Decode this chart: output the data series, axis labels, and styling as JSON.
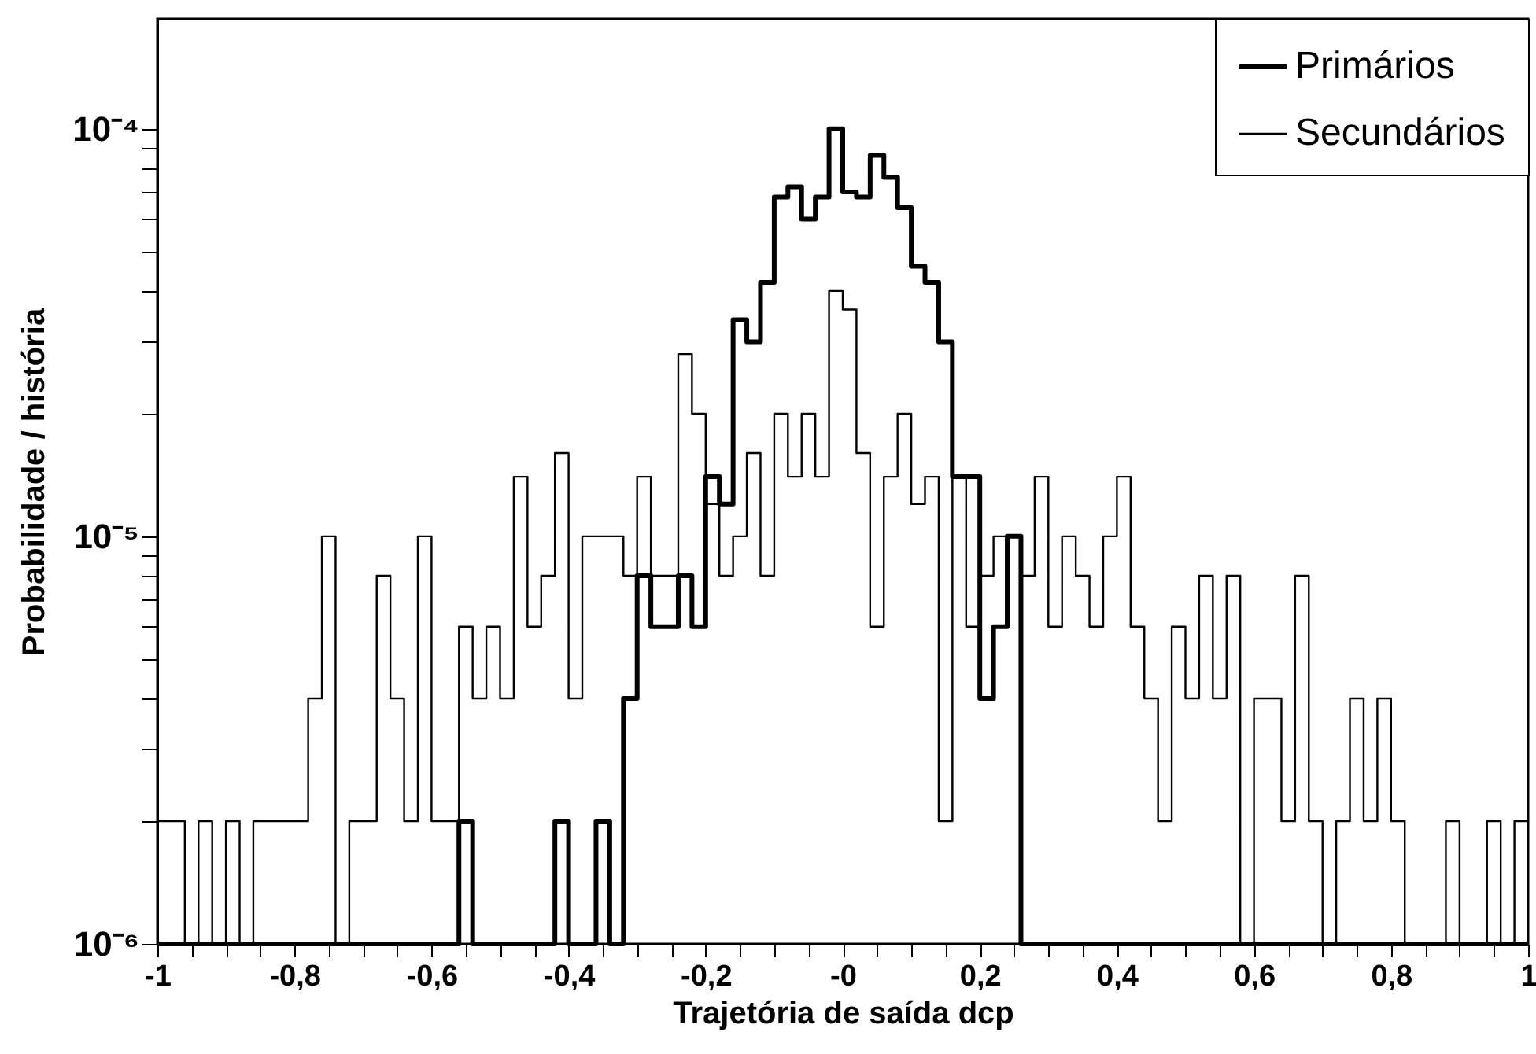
{
  "chart_data": {
    "type": "histogram",
    "xlabel": "Trajetória de saída dcp",
    "ylabel": "Probabilidade / história",
    "bins": [
      -1,
      -0.98,
      -0.96,
      -0.94,
      -0.92,
      -0.9,
      -0.88,
      -0.86,
      -0.84,
      -0.82,
      -0.8,
      -0.78,
      -0.76,
      -0.74,
      -0.72,
      -0.7,
      -0.68,
      -0.66,
      -0.64,
      -0.62,
      -0.6,
      -0.58,
      -0.56,
      -0.54,
      -0.52,
      -0.5,
      -0.48,
      -0.46,
      -0.44,
      -0.42,
      -0.4,
      -0.38,
      -0.36,
      -0.34,
      -0.32,
      -0.3,
      -0.28,
      -0.26,
      -0.24,
      -0.22,
      -0.2,
      -0.18,
      -0.16,
      -0.14,
      -0.12,
      -0.1,
      -0.08,
      -0.06,
      -0.04,
      -0.02,
      0,
      0.02,
      0.04,
      0.06,
      0.08,
      0.1,
      0.12,
      0.14,
      0.16,
      0.18,
      0.2,
      0.22,
      0.24,
      0.26,
      0.28,
      0.3,
      0.32,
      0.34,
      0.36,
      0.38,
      0.4,
      0.42,
      0.44,
      0.46,
      0.48,
      0.5,
      0.52,
      0.54,
      0.56,
      0.58,
      0.6,
      0.62,
      0.64,
      0.66,
      0.68,
      0.7,
      0.72,
      0.74,
      0.76,
      0.78,
      0.8,
      0.82,
      0.84,
      0.86,
      0.88,
      0.9,
      0.92,
      0.94,
      0.96,
      0.98,
      1
    ],
    "series": [
      {
        "name": "Primários",
        "color": "#000000",
        "values": [
          null,
          null,
          null,
          null,
          null,
          null,
          null,
          null,
          null,
          null,
          null,
          null,
          null,
          null,
          null,
          null,
          null,
          null,
          null,
          null,
          null,
          null,
          2e-06,
          null,
          null,
          null,
          null,
          null,
          null,
          2e-06,
          null,
          null,
          2e-06,
          null,
          4e-06,
          8e-06,
          6e-06,
          6e-06,
          8e-06,
          6e-06,
          1.4e-05,
          1.2e-05,
          3.4e-05,
          3e-05,
          4.2e-05,
          6.8e-05,
          7.2e-05,
          6e-05,
          6.8e-05,
          0.0001,
          7e-05,
          6.8e-05,
          8.6e-05,
          7.6e-05,
          6.4e-05,
          4.6e-05,
          4.2e-05,
          3e-05,
          1.4e-05,
          1.4e-05,
          4e-06,
          6e-06,
          1e-05,
          null,
          null,
          null,
          null,
          null,
          null,
          null,
          null,
          null,
          null,
          null,
          null,
          null,
          null,
          null,
          null,
          null,
          null,
          null,
          null,
          null,
          null,
          null,
          null,
          null,
          null,
          null,
          null,
          null,
          null,
          null,
          null,
          null,
          null,
          null,
          null,
          null
        ]
      },
      {
        "name": "Secundários",
        "color": "#000000",
        "values": [
          2e-06,
          2e-06,
          null,
          2e-06,
          null,
          2e-06,
          null,
          2e-06,
          2e-06,
          2e-06,
          2e-06,
          4e-06,
          1e-05,
          null,
          2e-06,
          2e-06,
          8e-06,
          4e-06,
          2e-06,
          1e-05,
          2e-06,
          2e-06,
          6e-06,
          4e-06,
          6e-06,
          4e-06,
          1.4e-05,
          6e-06,
          8e-06,
          1.6e-05,
          4e-06,
          1e-05,
          1e-05,
          1e-05,
          8e-06,
          1.4e-05,
          8e-06,
          8e-06,
          2.8e-05,
          2e-05,
          1.2e-05,
          8e-06,
          1e-05,
          1.6e-05,
          8e-06,
          2e-05,
          1.4e-05,
          2e-05,
          1.4e-05,
          4e-05,
          3.6e-05,
          1.6e-05,
          6e-06,
          1.4e-05,
          2e-05,
          1.2e-05,
          1.4e-05,
          2e-06,
          1.4e-05,
          6e-06,
          8e-06,
          1e-05,
          1e-05,
          8e-06,
          1.4e-05,
          6e-06,
          1e-05,
          8e-06,
          6e-06,
          1e-05,
          1.4e-05,
          6e-06,
          4e-06,
          2e-06,
          6e-06,
          4e-06,
          8e-06,
          4e-06,
          8e-06,
          null,
          4e-06,
          4e-06,
          2e-06,
          8e-06,
          2e-06,
          null,
          2e-06,
          4e-06,
          2e-06,
          4e-06,
          2e-06,
          null,
          null,
          null,
          2e-06,
          null,
          null,
          2e-06,
          null,
          2e-06
        ]
      }
    ],
    "xlim": [
      -1,
      1
    ],
    "xticks": [
      -1,
      {
        "value": -0.95,
        "label": null
      },
      {
        "value": -0.9,
        "label": null
      },
      {
        "value": -0.85,
        "label": null
      },
      {
        "value": -0.8,
        "label": "-0,8"
      },
      {
        "value": -0.75,
        "label": null
      },
      {
        "value": -0.7,
        "label": null
      },
      {
        "value": -0.65,
        "label": null
      },
      {
        "value": -0.6,
        "label": "-0,6"
      },
      {
        "value": -0.55,
        "label": null
      },
      {
        "value": -0.5,
        "label": null
      },
      {
        "value": -0.45,
        "label": null
      },
      {
        "value": -0.4,
        "label": "-0,4"
      },
      {
        "value": -0.35,
        "label": null
      },
      {
        "value": -0.3,
        "label": null
      },
      {
        "value": -0.25,
        "label": null
      },
      {
        "value": -0.2,
        "label": "-0,2"
      },
      {
        "value": -0.15,
        "label": null
      },
      {
        "value": -0.1,
        "label": null
      },
      {
        "value": -0.05,
        "label": null
      },
      {
        "value": 0,
        "label": "-0"
      },
      {
        "value": 0.05,
        "label": null
      },
      {
        "value": 0.1,
        "label": null
      },
      {
        "value": 0.15,
        "label": null
      },
      {
        "value": 0.2,
        "label": "0,2"
      },
      {
        "value": 0.25,
        "label": null
      },
      {
        "value": 0.3,
        "label": null
      },
      {
        "value": 0.35,
        "label": null
      },
      {
        "value": 0.4,
        "label": "0,4"
      },
      {
        "value": 0.45,
        "label": null
      },
      {
        "value": 0.5,
        "label": null
      },
      {
        "value": 0.55,
        "label": null
      },
      {
        "value": 0.6,
        "label": "0,6"
      },
      {
        "value": 0.65,
        "label": null
      },
      {
        "value": 0.7,
        "label": null
      },
      {
        "value": 0.75,
        "label": null
      },
      {
        "value": 0.8,
        "label": "0,8"
      },
      {
        "value": 0.85,
        "label": null
      },
      {
        "value": 0.9,
        "label": null
      },
      {
        "value": 0.95,
        "label": null
      },
      1
    ],
    "ylim": [
      1e-06,
      0.000186
    ],
    "yticks": [
      {
        "value": 1e-06,
        "label": "10⁻⁶"
      },
      {
        "value": 2e-06,
        "label": null
      },
      {
        "value": 3e-06,
        "label": null
      },
      {
        "value": 4e-06,
        "label": null
      },
      {
        "value": 5e-06,
        "label": null
      },
      {
        "value": 6e-06,
        "label": null
      },
      {
        "value": 7e-06,
        "label": null
      },
      {
        "value": 8e-06,
        "label": null
      },
      {
        "value": 9e-06,
        "label": null
      },
      {
        "value": 1e-05,
        "label": "10⁻⁵"
      },
      {
        "value": 2e-05,
        "label": null
      },
      {
        "value": 3e-05,
        "label": null
      },
      {
        "value": 4e-05,
        "label": null
      },
      {
        "value": 5e-05,
        "label": null
      },
      {
        "value": 6e-05,
        "label": null
      },
      {
        "value": 7e-05,
        "label": null
      },
      {
        "value": 8e-05,
        "label": null
      },
      {
        "value": 9e-05,
        "label": null
      },
      {
        "value": 0.0001,
        "label": "10⁻⁴"
      }
    ],
    "log": true,
    "grid": false,
    "legend": "top right"
  }
}
